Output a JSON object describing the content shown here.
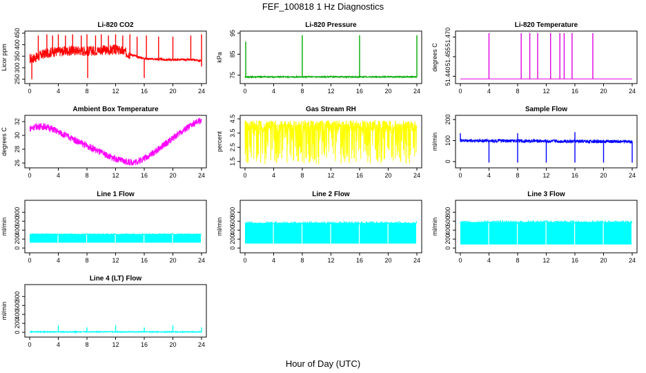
{
  "page": {
    "title": "FEF_100818  1 Hz Diagnostics",
    "x_caption": "Hour of Day (UTC)"
  },
  "chart_data": [
    {
      "type": "line",
      "title": "Li-820 CO2",
      "ylabel": "Licor ppm",
      "color": "#ff0000",
      "x_ticks": [
        0,
        4,
        8,
        12,
        16,
        20,
        24
      ],
      "y_ticks": [
        250,
        300,
        350,
        400,
        450
      ],
      "xlim": [
        0,
        24
      ],
      "ylim": [
        240,
        450
      ],
      "series": [
        {
          "baseline": [
            [
              0.0,
              338
            ],
            [
              1.0,
              345
            ],
            [
              2.0,
              360
            ],
            [
              3.0,
              368
            ],
            [
              4.0,
              370
            ],
            [
              5.0,
              372
            ],
            [
              6.0,
              374
            ],
            [
              7.0,
              375
            ],
            [
              8.0,
              372
            ],
            [
              9.0,
              374
            ],
            [
              10.0,
              377
            ],
            [
              11.0,
              375
            ],
            [
              12.0,
              378
            ],
            [
              13.0,
              372
            ],
            [
              14.0,
              358
            ],
            [
              15.0,
              348
            ],
            [
              16.0,
              340
            ],
            [
              17.0,
              338
            ],
            [
              18.0,
              336
            ],
            [
              19.0,
              335
            ],
            [
              20.0,
              335
            ],
            [
              21.0,
              335
            ],
            [
              22.0,
              334
            ],
            [
              23.0,
              334
            ],
            [
              24.0,
              330
            ]
          ],
          "noise_band": [
            [
              0,
              14,
              22
            ],
            [
              14,
              24,
              5
            ]
          ],
          "spikes": [
            [
              0.3,
              250
            ],
            [
              1.2,
              440
            ],
            [
              2.4,
              445
            ],
            [
              3.2,
              440
            ],
            [
              4.0,
              445
            ],
            [
              5.0,
              440
            ],
            [
              6.0,
              445
            ],
            [
              7.2,
              440
            ],
            [
              8.0,
              445
            ],
            [
              8.1,
              255
            ],
            [
              9.2,
              440
            ],
            [
              10.0,
              445
            ],
            [
              11.0,
              440
            ],
            [
              12.0,
              445
            ],
            [
              13.0,
              440
            ],
            [
              14.0,
              445
            ],
            [
              15.0,
              435
            ],
            [
              16.0,
              255
            ],
            [
              16.3,
              440
            ],
            [
              18.0,
              435
            ],
            [
              20.0,
              435
            ],
            [
              22.5,
              440
            ],
            [
              24.0,
              445
            ],
            [
              24.0,
              305
            ]
          ]
        }
      ]
    },
    {
      "type": "line",
      "title": "Li-820 Pressure",
      "ylabel": "kPa",
      "color": "#00aa00",
      "x_ticks": [
        0,
        4,
        8,
        12,
        16,
        20,
        24
      ],
      "y_ticks": [
        75,
        85,
        95
      ],
      "xlim": [
        0,
        24
      ],
      "ylim": [
        72,
        95
      ],
      "series": [
        {
          "baseline": [
            [
              0.0,
              74.2
            ],
            [
              24.0,
              74.2
            ]
          ],
          "noise_band": [
            [
              0,
              24,
              0.3
            ]
          ],
          "spikes": [
            [
              0.1,
              91
            ],
            [
              8.0,
              94
            ],
            [
              16.0,
              94
            ],
            [
              24.0,
              94
            ]
          ]
        }
      ]
    },
    {
      "type": "line",
      "title": "Li-820 Temperature",
      "ylabel": "degrees C",
      "color": "#e000e0",
      "x_ticks": [
        0,
        4,
        8,
        12,
        16,
        20,
        24
      ],
      "y_ticks": [
        51.44,
        51.455,
        51.47
      ],
      "y_tick_labels": [
        "51.440",
        "51.455",
        "51.470"
      ],
      "xlim": [
        0,
        24
      ],
      "ylim": [
        51.436,
        51.473
      ],
      "series": [
        {
          "baseline": [
            [
              0.0,
              51.438
            ],
            [
              24.0,
              51.438
            ]
          ],
          "noise_band": [],
          "spikes": [
            [
              4.0,
              51.473
            ],
            [
              8.5,
              51.473
            ],
            [
              9.7,
              51.473
            ],
            [
              10.8,
              51.473
            ],
            [
              12.6,
              51.473
            ],
            [
              13.9,
              51.473
            ],
            [
              14.5,
              51.473
            ],
            [
              15.6,
              51.473
            ],
            [
              18.5,
              51.473
            ]
          ]
        }
      ]
    },
    {
      "type": "line",
      "title": "Ambient Box Temperature",
      "ylabel": "degrees C",
      "color": "#ff00ff",
      "x_ticks": [
        0,
        4,
        8,
        12,
        16,
        20,
        24
      ],
      "y_ticks": [
        26,
        28,
        30,
        32
      ],
      "xlim": [
        0,
        24
      ],
      "ylim": [
        25.6,
        32.6
      ],
      "series": [
        {
          "baseline": [
            [
              0.0,
              31.0
            ],
            [
              1.0,
              31.3
            ],
            [
              2.0,
              31.3
            ],
            [
              3.0,
              31.0
            ],
            [
              4.0,
              30.5
            ],
            [
              5.0,
              30.0
            ],
            [
              6.0,
              29.5
            ],
            [
              7.0,
              29.0
            ],
            [
              8.0,
              28.5
            ],
            [
              9.0,
              28.0
            ],
            [
              10.0,
              27.5
            ],
            [
              11.0,
              27.0
            ],
            [
              12.0,
              26.6
            ],
            [
              13.0,
              26.3
            ],
            [
              14.0,
              26.1
            ],
            [
              15.0,
              26.2
            ],
            [
              16.0,
              26.7
            ],
            [
              17.0,
              27.3
            ],
            [
              18.0,
              28.0
            ],
            [
              19.0,
              28.8
            ],
            [
              20.0,
              29.6
            ],
            [
              21.0,
              30.4
            ],
            [
              22.0,
              31.1
            ],
            [
              23.0,
              31.7
            ],
            [
              24.0,
              32.2
            ]
          ],
          "noise_band": [
            [
              0,
              24,
              0.5
            ]
          ],
          "spikes": []
        }
      ]
    },
    {
      "type": "line",
      "title": "Gas Stream RH",
      "ylabel": "percent",
      "color": "#ffff00",
      "x_ticks": [
        0,
        4,
        8,
        12,
        16,
        20,
        24
      ],
      "y_ticks": [
        1.5,
        2.5,
        3.5,
        4.5
      ],
      "xlim": [
        0,
        24
      ],
      "ylim": [
        1.2,
        4.6
      ],
      "series": [
        {
          "baseline": [
            [
              0.0,
              4.0
            ],
            [
              24.0,
              4.0
            ]
          ],
          "noise_band": [
            [
              0,
              24,
              0.4
            ]
          ],
          "dropouts": [
            [
              0,
              24,
              1.3,
              4.3
            ]
          ],
          "spikes": []
        }
      ]
    },
    {
      "type": "line",
      "title": "Sample Flow",
      "ylabel": "ml/min",
      "color": "#0000ff",
      "x_ticks": [
        0,
        4,
        8,
        12,
        16,
        20,
        24
      ],
      "y_ticks": [
        0,
        100,
        200
      ],
      "xlim": [
        0,
        24
      ],
      "ylim": [
        -20,
        210
      ],
      "series": [
        {
          "baseline": [
            [
              0.0,
              100
            ],
            [
              24.0,
              95
            ]
          ],
          "noise_band": [
            [
              0,
              24,
              8
            ]
          ],
          "spikes": [
            [
              0.0,
              135
            ],
            [
              4.0,
              -5
            ],
            [
              8.0,
              135
            ],
            [
              8.0,
              -5
            ],
            [
              12.0,
              -5
            ],
            [
              16.0,
              140
            ],
            [
              16.0,
              -5
            ],
            [
              20.0,
              -5
            ],
            [
              24.0,
              -5
            ]
          ]
        }
      ]
    },
    {
      "type": "line",
      "title": "Line 1 Flow",
      "ylabel": "ml/min",
      "color": "#00ffff",
      "x_ticks": [
        0,
        4,
        8,
        12,
        16,
        20,
        24
      ],
      "y_ticks": [
        0,
        200,
        400,
        600,
        800
      ],
      "xlim": [
        0,
        24
      ],
      "ylim": [
        -60,
        1020
      ],
      "series": [
        {
          "baseline": [
            [
              0.0,
              200
            ],
            [
              24.0,
              200
            ]
          ],
          "noise_band": [],
          "block": [
            0,
            24,
            120,
            310
          ],
          "gaps": [
            3.9,
            7.9,
            11.9,
            15.9,
            19.9,
            23.9
          ],
          "spikes": []
        }
      ]
    },
    {
      "type": "line",
      "title": "Line 2 Flow",
      "ylabel": "ml/min",
      "color": "#00ffff",
      "x_ticks": [
        0,
        4,
        8,
        12,
        16,
        20,
        24
      ],
      "y_ticks": [
        0,
        200,
        400,
        600,
        800
      ],
      "xlim": [
        0,
        24
      ],
      "ylim": [
        -60,
        1020
      ],
      "series": [
        {
          "baseline": [
            [
              0.0,
              400
            ],
            [
              24.0,
              400
            ]
          ],
          "noise_band": [],
          "block": [
            0,
            24,
            100,
            560
          ],
          "gaps": [
            3.9,
            7.9,
            11.9,
            15.9,
            19.9,
            23.9
          ],
          "spikes": []
        }
      ]
    },
    {
      "type": "line",
      "title": "Line 3 Flow",
      "ylabel": "ml/min",
      "color": "#00ffff",
      "x_ticks": [
        0,
        4,
        8,
        12,
        16,
        20,
        24
      ],
      "y_ticks": [
        0,
        200,
        400,
        600,
        800
      ],
      "xlim": [
        0,
        24
      ],
      "ylim": [
        -60,
        1020
      ],
      "series": [
        {
          "baseline": [
            [
              0.0,
              400
            ],
            [
              24.0,
              400
            ]
          ],
          "noise_band": [],
          "block": [
            0,
            24,
            80,
            580
          ],
          "gaps": [
            3.9,
            7.9,
            11.9,
            15.9,
            19.9,
            23.9
          ],
          "spikes": [
            [
              4.0,
              30
            ],
            [
              12.0,
              30
            ],
            [
              20.0,
              30
            ]
          ]
        }
      ]
    },
    {
      "type": "line",
      "title": "Line 4 (LT) Flow",
      "ylabel": "ml/min",
      "color": "#00ffff",
      "x_ticks": [
        0,
        4,
        8,
        12,
        16,
        20,
        24
      ],
      "y_ticks": [
        0,
        200,
        400,
        600,
        800
      ],
      "xlim": [
        0,
        24
      ],
      "ylim": [
        -60,
        1020
      ],
      "series": [
        {
          "baseline": [
            [
              0.0,
              10
            ],
            [
              24.0,
              10
            ]
          ],
          "noise_band": [
            [
              0,
              24,
              10
            ]
          ],
          "spikes": [
            [
              4.0,
              160
            ],
            [
              8.0,
              110
            ],
            [
              12.0,
              160
            ],
            [
              16.0,
              110
            ],
            [
              20.0,
              160
            ],
            [
              24.0,
              110
            ]
          ]
        }
      ]
    }
  ]
}
